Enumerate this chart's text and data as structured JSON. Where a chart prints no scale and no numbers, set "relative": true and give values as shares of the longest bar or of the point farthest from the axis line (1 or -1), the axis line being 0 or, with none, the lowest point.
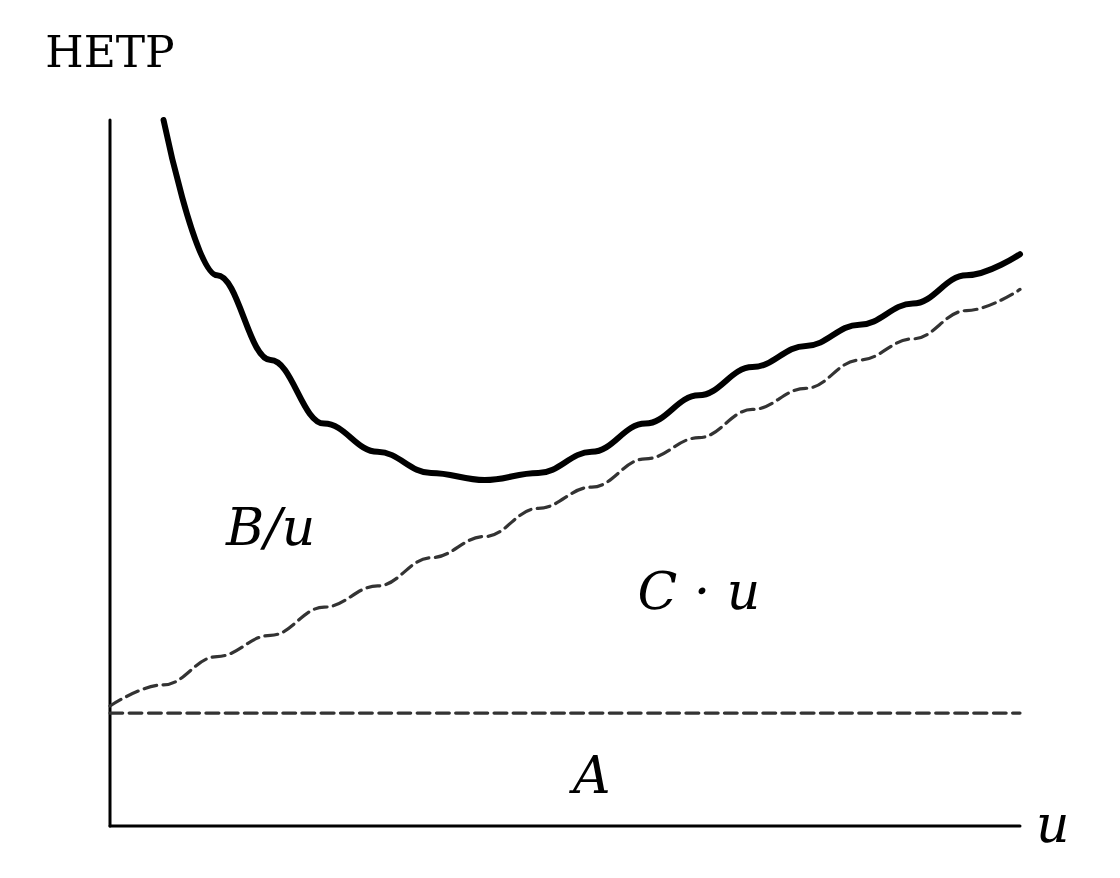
{
  "chart_data": {
    "type": "line",
    "relative": true,
    "xlabel": "u",
    "ylabel": "HETP",
    "grid": false,
    "marker": "none",
    "categories": [
      null,
      null,
      null,
      null,
      null,
      null,
      null,
      null,
      null,
      null,
      null,
      null,
      null,
      null,
      null,
      null,
      null,
      null
    ],
    "annotations": [
      "B/u",
      "C · u",
      "A"
    ],
    "series": [
      {
        "color": "#000000",
        "line_style": "solid",
        "values": [
          null,
          1,
          0.78,
          0.66,
          0.57,
          0.53,
          0.5,
          0.49,
          0.5,
          0.53,
          0.57,
          0.61,
          0.65,
          0.68,
          0.71,
          0.74,
          0.78,
          0.81
        ]
      },
      {
        "color": "#333333",
        "line_style": "dashed",
        "values": [
          0.17,
          0.2,
          0.24,
          0.27,
          0.31,
          0.34,
          0.38,
          0.41,
          0.45,
          0.48,
          0.52,
          0.55,
          0.59,
          0.62,
          0.66,
          0.69,
          0.73,
          0.76
        ]
      },
      {
        "color": "#333333",
        "line_style": "dashed",
        "values": [
          0.16,
          0.16,
          0.16,
          0.16,
          0.16,
          0.16,
          0.16,
          0.16,
          0.16,
          0.16,
          0.16,
          0.16,
          0.16,
          0.16,
          0.16,
          0.16,
          0.16,
          0.16
        ]
      }
    ]
  }
}
